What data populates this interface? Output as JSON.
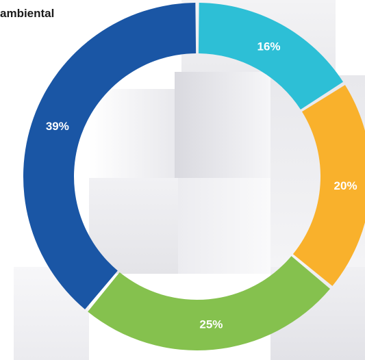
{
  "chart_data": {
    "type": "pie",
    "title": "ambiental",
    "categories": [
      "",
      "",
      "",
      ""
    ],
    "values": [
      16,
      20,
      25,
      39
    ],
    "labels": [
      "16%",
      "20%",
      "25%",
      "39%"
    ],
    "colors": [
      "#2dbfd6",
      "#f9b12c",
      "#85c14e",
      "#1a56a5"
    ],
    "donut": true
  }
}
